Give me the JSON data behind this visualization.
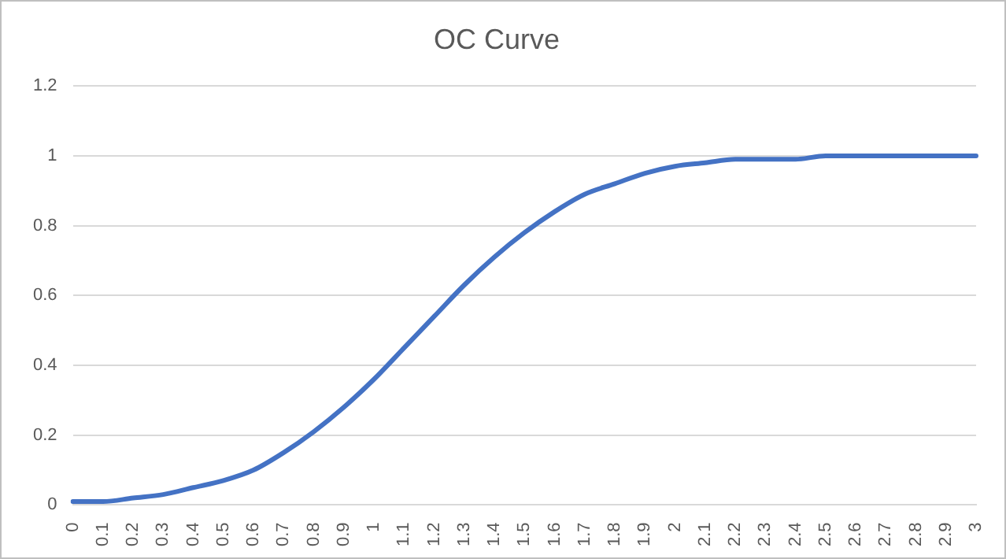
{
  "chart_data": {
    "type": "line",
    "title": "OC Curve",
    "categories": [
      "0",
      "0.1",
      "0.2",
      "0.3",
      "0.4",
      "0.5",
      "0.6",
      "0.7",
      "0.8",
      "0.9",
      "1",
      "1.1",
      "1.2",
      "1.3",
      "1.4",
      "1.5",
      "1.6",
      "1.7",
      "1.8",
      "1.9",
      "2",
      "2.1",
      "2.2",
      "2.3",
      "2.4",
      "2.5",
      "2.6",
      "2.7",
      "2.8",
      "2.9",
      "3"
    ],
    "series": [
      {
        "color": "#4472c4",
        "values": [
          0.01,
          0.01,
          0.02,
          0.03,
          0.05,
          0.07,
          0.1,
          0.15,
          0.21,
          0.28,
          0.36,
          0.45,
          0.54,
          0.63,
          0.71,
          0.78,
          0.84,
          0.89,
          0.92,
          0.95,
          0.97,
          0.98,
          0.99,
          0.99,
          0.99,
          1,
          1,
          1,
          1,
          1,
          1
        ]
      }
    ],
    "ylim": [
      0,
      1.2
    ],
    "yticks": [
      0,
      0.2,
      0.4,
      0.6,
      0.8,
      1,
      1.2
    ],
    "grid": "y",
    "legend": false,
    "marker": "none",
    "line_style": "solid"
  }
}
